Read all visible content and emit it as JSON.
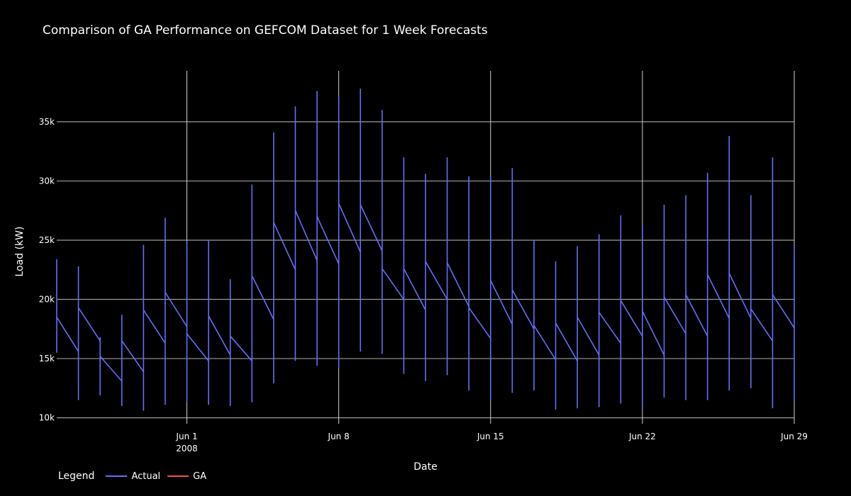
{
  "chart_data": {
    "type": "line",
    "title": "Comparison of GA Performance on GEFCOM Dataset for 1 Week Forecasts",
    "xlabel": "Date",
    "ylabel": "Load (kW)",
    "xlim": [
      "2008-05-26",
      "2008-06-29"
    ],
    "ylim": [
      9500,
      39300
    ],
    "x_ticks": [
      {
        "date": "2008-06-01",
        "label": "Jun 1",
        "sublabel": "2008"
      },
      {
        "date": "2008-06-08",
        "label": "Jun 8",
        "sublabel": ""
      },
      {
        "date": "2008-06-15",
        "label": "Jun 15",
        "sublabel": ""
      },
      {
        "date": "2008-06-22",
        "label": "Jun 22",
        "sublabel": ""
      },
      {
        "date": "2008-06-29",
        "label": "Jun 29",
        "sublabel": ""
      }
    ],
    "y_ticks": [
      {
        "value": 10000,
        "label": "10k"
      },
      {
        "value": 15000,
        "label": "15k"
      },
      {
        "value": 20000,
        "label": "20k"
      },
      {
        "value": 25000,
        "label": "25k"
      },
      {
        "value": 30000,
        "label": "30k"
      },
      {
        "value": 35000,
        "label": "35k"
      }
    ],
    "grid": true,
    "legend": {
      "title": "Legend",
      "placement": "bottom-left"
    },
    "series": [
      {
        "name": "Actual",
        "color": "#636efa",
        "day_series": [
          {
            "date": "2008-05-26",
            "high": 23400,
            "low": 15500,
            "start": 18500,
            "end": 15600
          },
          {
            "date": "2008-05-27",
            "high": 22800,
            "low": 11500,
            "start": 19300,
            "end": 16500
          },
          {
            "date": "2008-05-28",
            "high": 16800,
            "low": 11900,
            "start": 15200,
            "end": 13100
          },
          {
            "date": "2008-05-29",
            "high": 18700,
            "low": 11000,
            "start": 16500,
            "end": 13900
          },
          {
            "date": "2008-05-30",
            "high": 24600,
            "low": 10600,
            "start": 19100,
            "end": 16300
          },
          {
            "date": "2008-05-31",
            "high": 26900,
            "low": 11100,
            "start": 20600,
            "end": 17700
          },
          {
            "date": "2008-06-01",
            "high": 24900,
            "low": 11300,
            "start": 17100,
            "end": 14800
          },
          {
            "date": "2008-06-02",
            "high": 25000,
            "low": 11100,
            "start": 18600,
            "end": 15300
          },
          {
            "date": "2008-06-03",
            "high": 21700,
            "low": 11000,
            "start": 16900,
            "end": 14800
          },
          {
            "date": "2008-06-04",
            "high": 29700,
            "low": 11300,
            "start": 22000,
            "end": 18300
          },
          {
            "date": "2008-06-05",
            "high": 34100,
            "low": 12900,
            "start": 26500,
            "end": 22500
          },
          {
            "date": "2008-06-06",
            "high": 36300,
            "low": 14800,
            "start": 27500,
            "end": 23300
          },
          {
            "date": "2008-06-07",
            "high": 37600,
            "low": 14400,
            "start": 27000,
            "end": 23000
          },
          {
            "date": "2008-06-08",
            "high": 37100,
            "low": 14200,
            "start": 28100,
            "end": 24000
          },
          {
            "date": "2008-06-09",
            "high": 37800,
            "low": 15600,
            "start": 28000,
            "end": 24100
          },
          {
            "date": "2008-06-10",
            "high": 36000,
            "low": 15400,
            "start": 22600,
            "end": 20000
          },
          {
            "date": "2008-06-11",
            "high": 32000,
            "low": 13700,
            "start": 22600,
            "end": 19100
          },
          {
            "date": "2008-06-12",
            "high": 30600,
            "low": 13100,
            "start": 23200,
            "end": 20000
          },
          {
            "date": "2008-06-13",
            "high": 32000,
            "low": 13600,
            "start": 23100,
            "end": 19400
          },
          {
            "date": "2008-06-14",
            "high": 30400,
            "low": 12300,
            "start": 19300,
            "end": 16700
          },
          {
            "date": "2008-06-15",
            "high": 30400,
            "low": 11500,
            "start": 21600,
            "end": 17900
          },
          {
            "date": "2008-06-16",
            "high": 31100,
            "low": 12100,
            "start": 20800,
            "end": 17500
          },
          {
            "date": "2008-06-17",
            "high": 25000,
            "low": 12300,
            "start": 17800,
            "end": 14900
          },
          {
            "date": "2008-06-18",
            "high": 23200,
            "low": 10700,
            "start": 18000,
            "end": 14800
          },
          {
            "date": "2008-06-19",
            "high": 24500,
            "low": 10800,
            "start": 18500,
            "end": 15300
          },
          {
            "date": "2008-06-20",
            "high": 25500,
            "low": 10900,
            "start": 18900,
            "end": 16300
          },
          {
            "date": "2008-06-21",
            "high": 27100,
            "low": 11200,
            "start": 19900,
            "end": 16900
          },
          {
            "date": "2008-06-22",
            "high": 26200,
            "low": 10900,
            "start": 19000,
            "end": 15300
          },
          {
            "date": "2008-06-23",
            "high": 28000,
            "low": 11700,
            "start": 20200,
            "end": 17100
          },
          {
            "date": "2008-06-24",
            "high": 28800,
            "low": 11500,
            "start": 20400,
            "end": 16900
          },
          {
            "date": "2008-06-25",
            "high": 30700,
            "low": 11500,
            "start": 22100,
            "end": 18400
          },
          {
            "date": "2008-06-26",
            "high": 33800,
            "low": 12300,
            "start": 22200,
            "end": 18400
          },
          {
            "date": "2008-06-27",
            "high": 28800,
            "low": 12500,
            "start": 19200,
            "end": 16500
          },
          {
            "date": "2008-06-28",
            "high": 32000,
            "low": 10800,
            "start": 20400,
            "end": 17600
          },
          {
            "date": "2008-06-29",
            "high": 24500,
            "low": 11400,
            "start": null,
            "end": null
          }
        ]
      },
      {
        "name": "GA",
        "color": "#ef553b",
        "day_series": []
      }
    ]
  }
}
